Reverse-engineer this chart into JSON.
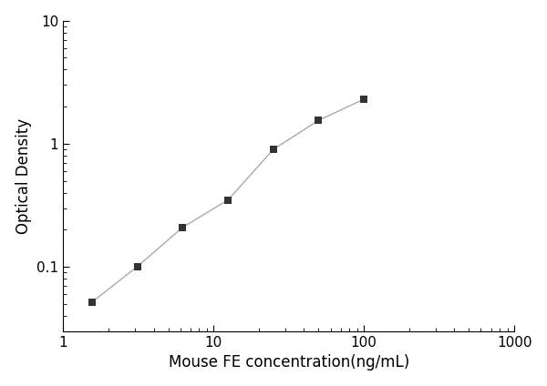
{
  "x": [
    1.563,
    3.125,
    6.25,
    12.5,
    25,
    50,
    100
  ],
  "y": [
    0.052,
    0.101,
    0.21,
    0.35,
    0.9,
    1.55,
    2.3
  ],
  "xlim": [
    1,
    1000
  ],
  "ylim": [
    0.03,
    10
  ],
  "xlabel": "Mouse FE concentration(ng/mL)",
  "ylabel": "Optical Density",
  "line_color": "#aaaaaa",
  "marker_color": "#333333",
  "marker": "s",
  "marker_size": 6,
  "line_width": 1.0,
  "background_color": "#ffffff",
  "xticks": [
    1,
    10,
    100,
    1000
  ],
  "yticks": [
    0.1,
    1,
    10
  ],
  "xlabel_fontsize": 12,
  "ylabel_fontsize": 12,
  "tick_labelsize": 11
}
